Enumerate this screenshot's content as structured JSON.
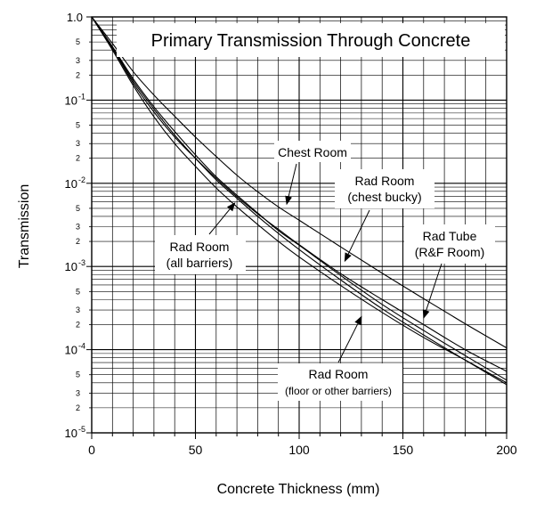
{
  "chart_data": {
    "type": "line",
    "title": "Primary Transmission Through Concrete",
    "xlabel": "Concrete Thickness (mm)",
    "ylabel": "Transmission",
    "xlim": [
      0,
      200
    ],
    "ylim": [
      1e-05,
      1
    ],
    "y_scale": "log",
    "grid": true,
    "x_ticks": [
      0,
      50,
      100,
      150,
      200
    ],
    "x_tick_labels": [
      "0",
      "50",
      "100",
      "150",
      "200"
    ],
    "y_major_tick_labels": [
      {
        "value": 1,
        "base": "1.0",
        "exp": ""
      },
      {
        "value": 0.1,
        "base": "10",
        "exp": "-1"
      },
      {
        "value": 0.01,
        "base": "10",
        "exp": "-2"
      },
      {
        "value": 0.001,
        "base": "10",
        "exp": "-3"
      },
      {
        "value": 0.0001,
        "base": "10",
        "exp": "-4"
      },
      {
        "value": 1e-05,
        "base": "10",
        "exp": "-5"
      }
    ],
    "y_minor_tick_labels": [
      "2",
      "3",
      "5"
    ],
    "series": [
      {
        "x": [
          0,
          10,
          20,
          30,
          40,
          50,
          60,
          70,
          80,
          90,
          100,
          120,
          140,
          160,
          180,
          200
        ],
        "y": [
          1,
          0.4,
          0.15,
          0.063,
          0.03,
          0.016,
          0.0088,
          0.0052,
          0.0032,
          0.002,
          0.0013,
          0.00059,
          0.00028,
          0.00014,
          7.5e-05,
          4e-05
        ]
      },
      {
        "x": [
          0,
          10,
          20,
          30,
          40,
          50,
          60,
          70,
          80,
          90,
          100,
          120,
          140,
          160,
          180,
          200
        ],
        "y": [
          1,
          0.42,
          0.16,
          0.072,
          0.036,
          0.02,
          0.0115,
          0.0069,
          0.0043,
          0.0028,
          0.00183,
          0.00082,
          0.0004,
          0.0002,
          0.0001,
          5.5e-05
        ]
      },
      {
        "x": [
          0,
          10,
          20,
          30,
          40,
          50,
          60,
          70,
          80,
          90,
          100,
          120,
          140,
          160,
          180,
          200
        ],
        "y": [
          1,
          0.43,
          0.17,
          0.078,
          0.038,
          0.02,
          0.011,
          0.0066,
          0.004,
          0.0025,
          0.0016,
          0.00069,
          0.00031,
          0.00015,
          7.5e-05,
          3.8e-05
        ]
      },
      {
        "x": [
          0,
          10,
          20,
          30,
          40,
          50,
          60,
          70,
          80,
          90,
          100,
          120,
          140,
          160,
          180,
          200
        ],
        "y": [
          1,
          0.44,
          0.18,
          0.083,
          0.042,
          0.022,
          0.012,
          0.0072,
          0.0044,
          0.0027,
          0.0018,
          0.00078,
          0.00035,
          0.00017,
          8.5e-05,
          4.3e-05
        ]
      },
      {
        "x": [
          0,
          10,
          20,
          30,
          40,
          50,
          60,
          70,
          80,
          90,
          100,
          120,
          140,
          160,
          180,
          200
        ],
        "y": [
          1,
          0.48,
          0.22,
          0.115,
          0.064,
          0.036,
          0.021,
          0.0125,
          0.0079,
          0.0052,
          0.0036,
          0.00172,
          0.00083,
          0.00041,
          0.000205,
          0.000105
        ]
      }
    ],
    "annotations": [
      {
        "lines": [
          "Chest Room"
        ],
        "arrow_to": {
          "x": 94,
          "y": 0.0056
        }
      },
      {
        "lines": [
          "Rad Room",
          "(chest bucky)"
        ],
        "arrow_to": {
          "x": 122,
          "y": 0.00116
        }
      },
      {
        "lines": [
          "Rad Tube",
          "(R&F Room)"
        ],
        "arrow_to": {
          "x": 160,
          "y": 0.00024
        }
      },
      {
        "lines": [
          "Rad Room",
          "(all barriers)"
        ],
        "arrow_to": {
          "x": 69,
          "y": 0.0058
        }
      },
      {
        "lines": [
          "Rad Room",
          "(floor or other barriers)"
        ],
        "arrow_to": {
          "x": 130,
          "y": 0.00025
        }
      }
    ]
  }
}
